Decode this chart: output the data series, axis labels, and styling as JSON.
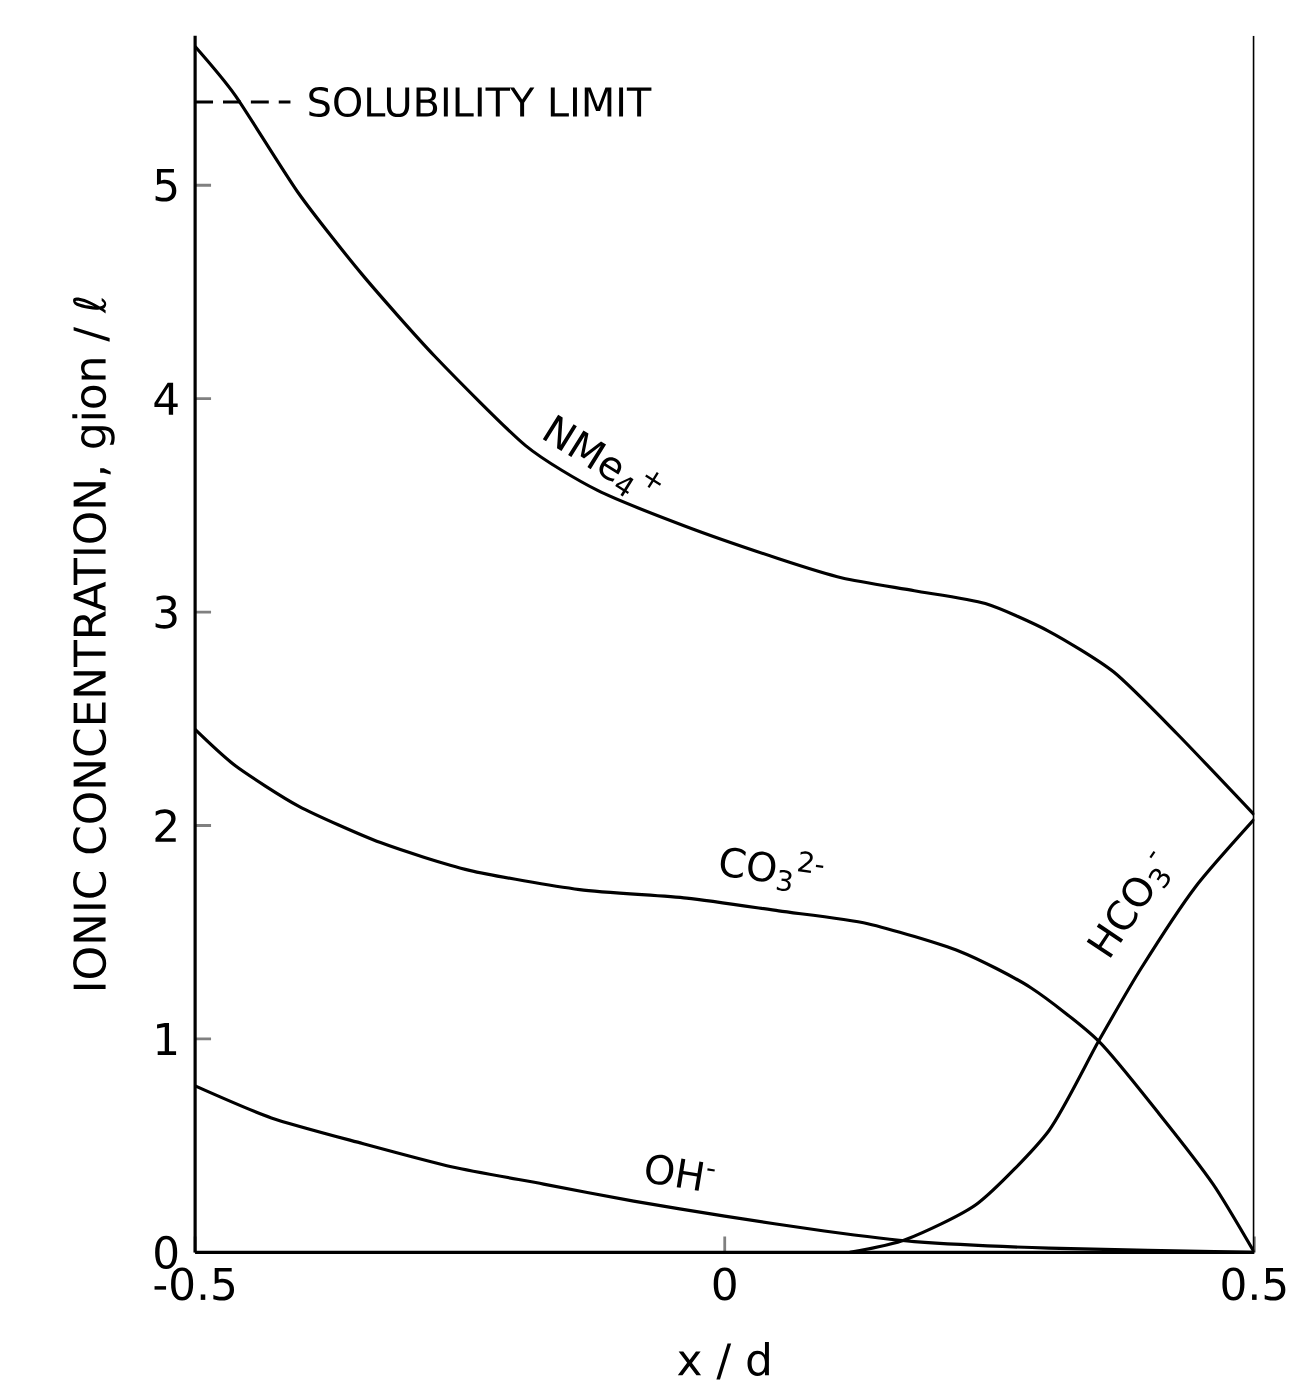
{
  "chart_data": {
    "type": "line",
    "xlabel": "x / d",
    "ylabel": "IONIC CONCENTRATION, gion / ℓ",
    "xlim": [
      -0.5,
      0.5
    ],
    "ylim": [
      0,
      5.7
    ],
    "xticks": [
      -0.5,
      0,
      0.5
    ],
    "yticks": [
      0,
      1,
      2,
      3,
      4,
      5
    ],
    "grid": false,
    "marker": "none",
    "line_style": "solid",
    "series": [
      {
        "name": "NMe$_{4}$$^{+}$",
        "color": "#000000",
        "x": [
          -0.5,
          -0.462,
          -0.402,
          -0.342,
          -0.274,
          -0.188,
          -0.12,
          -0.036,
          0.051,
          0.111,
          0.179,
          0.246,
          0.306,
          0.367,
          0.427,
          0.5
        ],
        "values": [
          5.65,
          5.42,
          4.96,
          4.58,
          4.2,
          3.78,
          3.57,
          3.4,
          3.25,
          3.16,
          3.1,
          3.04,
          2.91,
          2.72,
          2.43,
          2.05
        ]
      },
      {
        "name": "CO$_{3}$$^{2-}$",
        "color": "#000000",
        "x": [
          -0.5,
          -0.462,
          -0.402,
          -0.325,
          -0.241,
          -0.137,
          -0.036,
          0.051,
          0.135,
          0.222,
          0.289,
          0.353,
          0.41,
          0.461,
          0.5
        ],
        "values": [
          2.45,
          2.28,
          2.09,
          1.92,
          1.79,
          1.7,
          1.66,
          1.6,
          1.54,
          1.41,
          1.24,
          0.99,
          0.65,
          0.32,
          0
        ]
      },
      {
        "name": "OH$^{-}$",
        "color": "#000000",
        "x": [
          -0.5,
          -0.428,
          -0.342,
          -0.257,
          -0.171,
          -0.086,
          0,
          0.094,
          0.179,
          0.306,
          0.5
        ],
        "values": [
          0.78,
          0.63,
          0.51,
          0.4,
          0.32,
          0.24,
          0.17,
          0.1,
          0.05,
          0.02,
          0
        ]
      },
      {
        "name": "HCO$_{3}$$^{-}$",
        "color": "#000000",
        "x": [
          0.118,
          0.171,
          0.239,
          0.306,
          0.353,
          0.393,
          0.444,
          0.5
        ],
        "values": [
          0,
          0.06,
          0.23,
          0.57,
          0.99,
          1.33,
          1.71,
          2.03
        ]
      }
    ],
    "ref_lines": [
      {
        "axis": "y",
        "value": 5.39,
        "label": "SOLUBILITY LIMIT",
        "line_style": "dashed",
        "color": "#000000"
      }
    ]
  }
}
